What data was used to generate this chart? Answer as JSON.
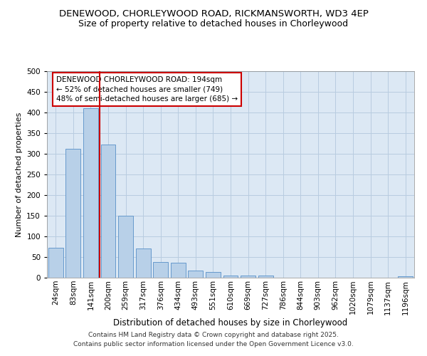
{
  "title": "DENEWOOD, CHORLEYWOOD ROAD, RICKMANSWORTH, WD3 4EP",
  "subtitle": "Size of property relative to detached houses in Chorleywood",
  "xlabel": "Distribution of detached houses by size in Chorleywood",
  "ylabel": "Number of detached properties",
  "categories": [
    "24sqm",
    "83sqm",
    "141sqm",
    "200sqm",
    "259sqm",
    "317sqm",
    "376sqm",
    "434sqm",
    "493sqm",
    "551sqm",
    "610sqm",
    "669sqm",
    "727sqm",
    "786sqm",
    "844sqm",
    "903sqm",
    "962sqm",
    "1020sqm",
    "1079sqm",
    "1137sqm",
    "1196sqm"
  ],
  "values": [
    72,
    312,
    410,
    322,
    150,
    70,
    38,
    36,
    18,
    13,
    6,
    5,
    6,
    0,
    0,
    0,
    0,
    0,
    0,
    0,
    3
  ],
  "bar_color": "#b8d0e8",
  "bar_edge_color": "#6699cc",
  "vline_x_index": 3,
  "vline_color": "#cc0000",
  "annotation_text": "DENEWOOD CHORLEYWOOD ROAD: 194sqm\n← 52% of detached houses are smaller (749)\n48% of semi-detached houses are larger (685) →",
  "annotation_box_color": "#ffffff",
  "annotation_box_edge_color": "#cc0000",
  "footer_text": "Contains HM Land Registry data © Crown copyright and database right 2025.\nContains public sector information licensed under the Open Government Licence v3.0.",
  "bg_color": "#ffffff",
  "plot_bg_color": "#dce8f4",
  "grid_color": "#b8cce0",
  "ylim": [
    0,
    500
  ],
  "yticks": [
    0,
    50,
    100,
    150,
    200,
    250,
    300,
    350,
    400,
    450,
    500
  ],
  "title_fontsize": 9.5,
  "subtitle_fontsize": 9,
  "xlabel_fontsize": 8.5,
  "ylabel_fontsize": 8,
  "tick_fontsize": 7.5,
  "annotation_fontsize": 7.5,
  "footer_fontsize": 6.5
}
